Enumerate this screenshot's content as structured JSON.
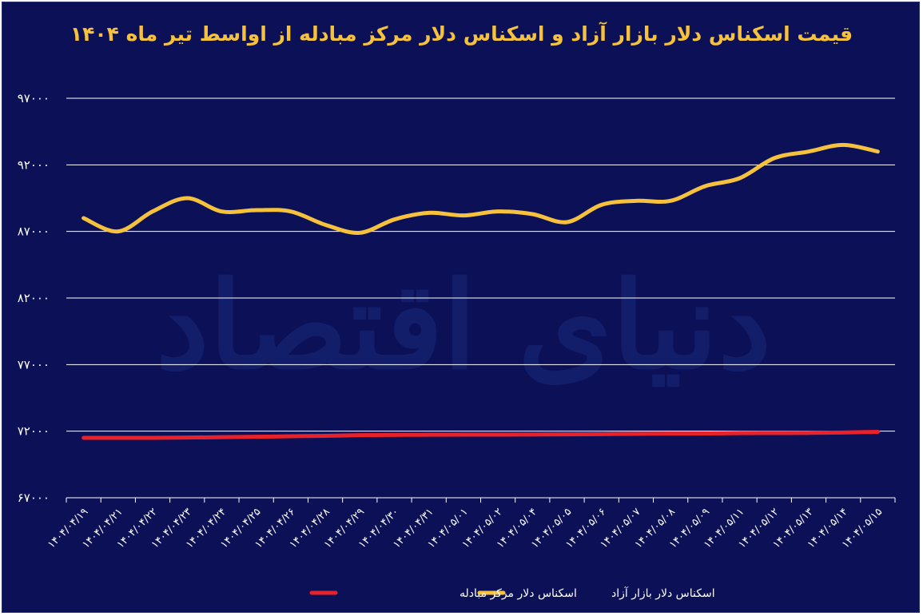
{
  "chart_data": {
    "type": "line",
    "title": "قیمت اسکناس دلار بازار آزاد و اسکناس دلار مرکز مبادله از اواسط تیر ماه ۱۴۰۴",
    "categories": [
      "۱۴۰۴/۰۴/۱۹",
      "۱۴۰۴/۰۴/۲۱",
      "۱۴۰۴/۰۴/۲۲",
      "۱۴۰۴/۰۴/۲۳",
      "۱۴۰۴/۰۴/۲۴",
      "۱۴۰۴/۰۴/۲۵",
      "۱۴۰۴/۰۴/۲۶",
      "۱۴۰۴/۰۴/۲۸",
      "۱۴۰۴/۰۴/۲۹",
      "۱۴۰۴/۰۴/۳۰",
      "۱۴۰۴/۰۴/۳۱",
      "۱۴۰۴/۰۵/۰۱",
      "۱۴۰۴/۰۵/۰۲",
      "۱۴۰۴/۰۵/۰۴",
      "۱۴۰۴/۰۵/۰۵",
      "۱۴۰۴/۰۵/۰۶",
      "۱۴۰۴/۰۵/۰۷",
      "۱۴۰۴/۰۵/۰۸",
      "۱۴۰۴/۰۵/۰۹",
      "۱۴۰۴/۰۵/۱۱",
      "۱۴۰۴/۰۵/۱۲",
      "۱۴۰۴/۰۵/۱۳",
      "۱۴۰۴/۰۵/۱۴",
      "۱۴۰۴/۰۵/۱۵"
    ],
    "y_ticks": [
      "۶۷۰۰۰",
      "۷۲۰۰۰",
      "۷۷۰۰۰",
      "۸۲۰۰۰",
      "۸۷۰۰۰",
      "۹۲۰۰۰",
      "۹۷۰۰۰"
    ],
    "ylim": [
      67000,
      97000
    ],
    "grid": true,
    "legend_position": "bottom",
    "series": [
      {
        "name": "اسکناس دلار مرکز مبادله",
        "color": "#e8222b",
        "values": [
          71500,
          71500,
          71500,
          71520,
          71550,
          71580,
          71620,
          71650,
          71700,
          71720,
          71730,
          71740,
          71740,
          71750,
          71760,
          71780,
          71800,
          71820,
          71830,
          71850,
          71860,
          71870,
          71900,
          71950
        ]
      },
      {
        "name": "اسکناس دلار بازار آزاد",
        "color": "#f6c23e",
        "values": [
          88000,
          87000,
          88500,
          89500,
          88500,
          88600,
          88500,
          87500,
          86900,
          87900,
          88400,
          88200,
          88500,
          88300,
          87700,
          89000,
          89300,
          89300,
          90400,
          91000,
          92500,
          93000,
          93500,
          93000
        ]
      }
    ]
  },
  "watermark_text": "دنیای اقتصاد"
}
